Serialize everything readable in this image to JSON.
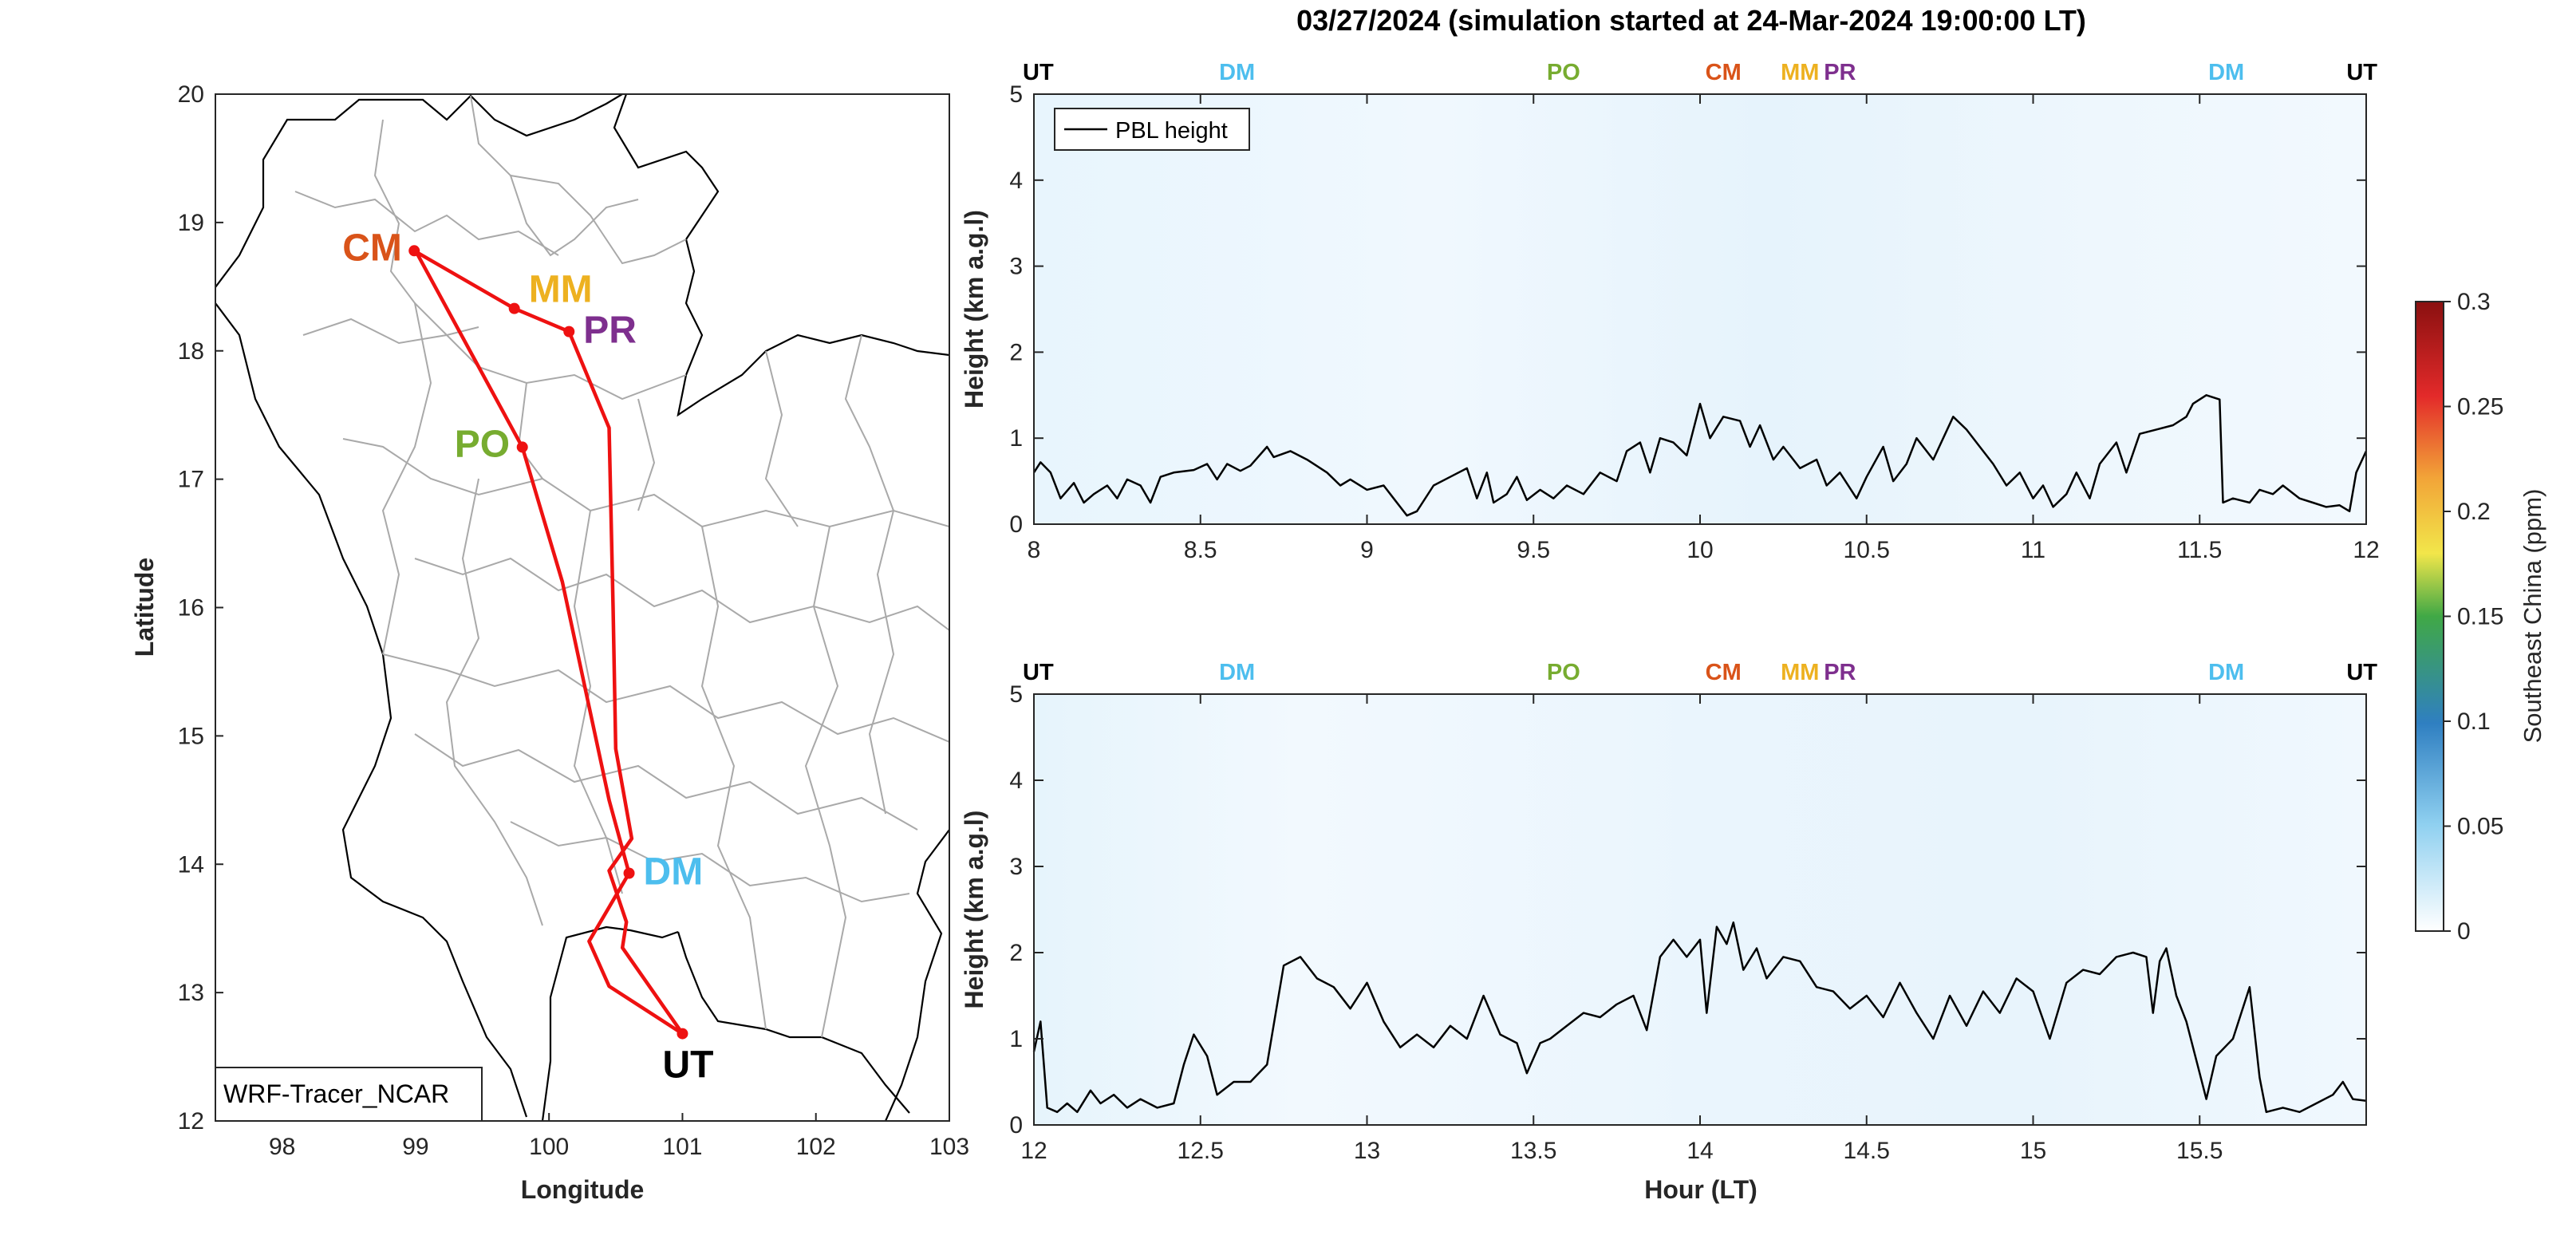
{
  "title": "03/27/2024 (simulation started at 24-Mar-2024 19:00:00 LT)",
  "colors": {
    "CM": "#D95319",
    "MM": "#EDB120",
    "PR": "#7E2F8E",
    "PO": "#77AC30",
    "DM": "#4DBEEE",
    "UT": "#000000",
    "route": "#EE1111",
    "pbl": "#000000"
  },
  "map": {
    "xlabel": "Longitude",
    "ylabel": "Latitude",
    "xlim": [
      97.5,
      103
    ],
    "ylim": [
      12,
      20
    ],
    "xticks": [
      "98",
      "99",
      "100",
      "101",
      "102",
      "103"
    ],
    "yticks": [
      "12",
      "13",
      "14",
      "15",
      "16",
      "17",
      "18",
      "19",
      "20"
    ],
    "label_box": "WRF-Tracer_NCAR",
    "route": [
      [
        98.99,
        18.78
      ],
      [
        99.74,
        18.33
      ],
      [
        100.15,
        18.15
      ],
      [
        100.45,
        17.4
      ],
      [
        100.48,
        16.0
      ],
      [
        100.5,
        14.9
      ],
      [
        100.62,
        14.2
      ],
      [
        100.45,
        13.95
      ],
      [
        100.58,
        13.55
      ],
      [
        100.55,
        13.35
      ],
      [
        101.0,
        12.68
      ],
      [
        100.45,
        13.05
      ],
      [
        100.3,
        13.4
      ],
      [
        100.6,
        13.93
      ],
      [
        100.45,
        14.5
      ],
      [
        100.1,
        16.2
      ],
      [
        99.8,
        17.25
      ],
      [
        99.0,
        18.78
      ]
    ],
    "places": [
      {
        "code": "CM",
        "lon": 98.99,
        "lat": 18.78
      },
      {
        "code": "MM",
        "lon": 99.74,
        "lat": 18.33
      },
      {
        "code": "PR",
        "lon": 100.15,
        "lat": 18.15
      },
      {
        "code": "PO",
        "lon": 99.8,
        "lat": 17.25
      },
      {
        "code": "DM",
        "lon": 100.6,
        "lat": 13.93
      },
      {
        "code": "UT",
        "lon": 101.0,
        "lat": 12.68
      }
    ]
  },
  "colorbar": {
    "label": "Southeast China (ppm)",
    "ticks": [
      "0",
      "0.05",
      "0.1",
      "0.15",
      "0.2",
      "0.25",
      "0.3"
    ],
    "range": [
      0,
      0.3
    ]
  },
  "chart_data": [
    {
      "type": "line",
      "ylabel": "Height (km a.g.l)",
      "xlim": [
        8,
        12
      ],
      "ylim": [
        0,
        5
      ],
      "xticks": [
        "8",
        "8.5",
        "9",
        "9.5",
        "10",
        "10.5",
        "11",
        "11.5",
        "12"
      ],
      "yticks": [
        "0",
        "1",
        "2",
        "3",
        "4",
        "5"
      ],
      "legend": "PBL height",
      "legend_position": "top-left",
      "top_markers": [
        {
          "label": "UT",
          "x": 8.0
        },
        {
          "label": "DM",
          "x": 8.61
        },
        {
          "label": "PO",
          "x": 9.59
        },
        {
          "label": "CM",
          "x": 10.07
        },
        {
          "label": "MM",
          "x": 10.3
        },
        {
          "label": "PR",
          "x": 10.42
        },
        {
          "label": "DM",
          "x": 11.58
        },
        {
          "label": "UT",
          "x": 11.97
        }
      ],
      "series": [
        {
          "name": "PBL height",
          "points": [
            [
              8.0,
              0.6
            ],
            [
              8.02,
              0.72
            ],
            [
              8.05,
              0.6
            ],
            [
              8.08,
              0.3
            ],
            [
              8.12,
              0.48
            ],
            [
              8.15,
              0.25
            ],
            [
              8.18,
              0.35
            ],
            [
              8.22,
              0.45
            ],
            [
              8.25,
              0.3
            ],
            [
              8.28,
              0.52
            ],
            [
              8.32,
              0.45
            ],
            [
              8.35,
              0.25
            ],
            [
              8.38,
              0.55
            ],
            [
              8.42,
              0.6
            ],
            [
              8.48,
              0.63
            ],
            [
              8.52,
              0.7
            ],
            [
              8.55,
              0.52
            ],
            [
              8.58,
              0.7
            ],
            [
              8.62,
              0.62
            ],
            [
              8.65,
              0.68
            ],
            [
              8.7,
              0.9
            ],
            [
              8.72,
              0.78
            ],
            [
              8.77,
              0.85
            ],
            [
              8.82,
              0.75
            ],
            [
              8.88,
              0.6
            ],
            [
              8.92,
              0.45
            ],
            [
              8.95,
              0.52
            ],
            [
              9.0,
              0.4
            ],
            [
              9.05,
              0.45
            ],
            [
              9.08,
              0.3
            ],
            [
              9.12,
              0.1
            ],
            [
              9.15,
              0.15
            ],
            [
              9.2,
              0.45
            ],
            [
              9.25,
              0.55
            ],
            [
              9.3,
              0.65
            ],
            [
              9.33,
              0.3
            ],
            [
              9.36,
              0.6
            ],
            [
              9.38,
              0.25
            ],
            [
              9.42,
              0.35
            ],
            [
              9.45,
              0.55
            ],
            [
              9.48,
              0.28
            ],
            [
              9.52,
              0.4
            ],
            [
              9.56,
              0.3
            ],
            [
              9.6,
              0.45
            ],
            [
              9.65,
              0.35
            ],
            [
              9.7,
              0.6
            ],
            [
              9.75,
              0.5
            ],
            [
              9.78,
              0.85
            ],
            [
              9.82,
              0.95
            ],
            [
              9.85,
              0.6
            ],
            [
              9.88,
              1.0
            ],
            [
              9.92,
              0.95
            ],
            [
              9.96,
              0.8
            ],
            [
              10.0,
              1.4
            ],
            [
              10.03,
              1.0
            ],
            [
              10.07,
              1.25
            ],
            [
              10.12,
              1.2
            ],
            [
              10.15,
              0.9
            ],
            [
              10.18,
              1.15
            ],
            [
              10.22,
              0.75
            ],
            [
              10.25,
              0.9
            ],
            [
              10.3,
              0.65
            ],
            [
              10.35,
              0.75
            ],
            [
              10.38,
              0.45
            ],
            [
              10.42,
              0.6
            ],
            [
              10.47,
              0.3
            ],
            [
              10.5,
              0.55
            ],
            [
              10.55,
              0.9
            ],
            [
              10.58,
              0.5
            ],
            [
              10.62,
              0.7
            ],
            [
              10.65,
              1.0
            ],
            [
              10.7,
              0.75
            ],
            [
              10.73,
              1.0
            ],
            [
              10.76,
              1.25
            ],
            [
              10.8,
              1.1
            ],
            [
              10.84,
              0.9
            ],
            [
              10.88,
              0.7
            ],
            [
              10.92,
              0.45
            ],
            [
              10.96,
              0.6
            ],
            [
              11.0,
              0.3
            ],
            [
              11.03,
              0.45
            ],
            [
              11.06,
              0.2
            ],
            [
              11.1,
              0.35
            ],
            [
              11.13,
              0.6
            ],
            [
              11.17,
              0.3
            ],
            [
              11.2,
              0.7
            ],
            [
              11.25,
              0.95
            ],
            [
              11.28,
              0.6
            ],
            [
              11.32,
              1.05
            ],
            [
              11.37,
              1.1
            ],
            [
              11.42,
              1.15
            ],
            [
              11.46,
              1.25
            ],
            [
              11.48,
              1.4
            ],
            [
              11.52,
              1.5
            ],
            [
              11.56,
              1.45
            ],
            [
              11.57,
              0.25
            ],
            [
              11.6,
              0.3
            ],
            [
              11.65,
              0.25
            ],
            [
              11.68,
              0.4
            ],
            [
              11.72,
              0.35
            ],
            [
              11.75,
              0.45
            ],
            [
              11.8,
              0.3
            ],
            [
              11.84,
              0.25
            ],
            [
              11.88,
              0.2
            ],
            [
              11.92,
              0.22
            ],
            [
              11.95,
              0.15
            ],
            [
              11.97,
              0.6
            ],
            [
              12.0,
              0.85
            ]
          ]
        }
      ]
    },
    {
      "type": "line",
      "xlabel": "Hour (LT)",
      "ylabel": "Height (km a.g.l)",
      "xlim": [
        12,
        16
      ],
      "ylim": [
        0,
        5
      ],
      "xticks": [
        "12",
        "12.5",
        "13",
        "13.5",
        "14",
        "14.5",
        "15",
        "15.5"
      ],
      "yticks": [
        "0",
        "1",
        "2",
        "3",
        "4",
        "5"
      ],
      "top_markers": [
        {
          "label": "UT",
          "x": 12.0
        },
        {
          "label": "DM",
          "x": 12.61
        },
        {
          "label": "PO",
          "x": 13.59
        },
        {
          "label": "CM",
          "x": 14.07
        },
        {
          "label": "MM",
          "x": 14.3
        },
        {
          "label": "PR",
          "x": 14.42
        },
        {
          "label": "DM",
          "x": 15.58
        },
        {
          "label": "UT",
          "x": 15.97
        }
      ],
      "series": [
        {
          "name": "PBL height",
          "points": [
            [
              12.0,
              0.85
            ],
            [
              12.02,
              1.2
            ],
            [
              12.04,
              0.2
            ],
            [
              12.07,
              0.15
            ],
            [
              12.1,
              0.25
            ],
            [
              12.13,
              0.15
            ],
            [
              12.17,
              0.4
            ],
            [
              12.2,
              0.25
            ],
            [
              12.24,
              0.35
            ],
            [
              12.28,
              0.2
            ],
            [
              12.32,
              0.3
            ],
            [
              12.37,
              0.2
            ],
            [
              12.42,
              0.25
            ],
            [
              12.45,
              0.7
            ],
            [
              12.48,
              1.05
            ],
            [
              12.52,
              0.8
            ],
            [
              12.55,
              0.35
            ],
            [
              12.6,
              0.5
            ],
            [
              12.65,
              0.5
            ],
            [
              12.7,
              0.7
            ],
            [
              12.75,
              1.85
            ],
            [
              12.8,
              1.95
            ],
            [
              12.85,
              1.7
            ],
            [
              12.9,
              1.6
            ],
            [
              12.95,
              1.35
            ],
            [
              13.0,
              1.65
            ],
            [
              13.05,
              1.2
            ],
            [
              13.1,
              0.9
            ],
            [
              13.15,
              1.05
            ],
            [
              13.2,
              0.9
            ],
            [
              13.25,
              1.15
            ],
            [
              13.3,
              1.0
            ],
            [
              13.35,
              1.5
            ],
            [
              13.4,
              1.05
            ],
            [
              13.45,
              0.95
            ],
            [
              13.48,
              0.6
            ],
            [
              13.52,
              0.95
            ],
            [
              13.55,
              1.0
            ],
            [
              13.6,
              1.15
            ],
            [
              13.65,
              1.3
            ],
            [
              13.7,
              1.25
            ],
            [
              13.75,
              1.4
            ],
            [
              13.8,
              1.5
            ],
            [
              13.84,
              1.1
            ],
            [
              13.88,
              1.95
            ],
            [
              13.92,
              2.15
            ],
            [
              13.96,
              1.95
            ],
            [
              14.0,
              2.15
            ],
            [
              14.02,
              1.3
            ],
            [
              14.05,
              2.3
            ],
            [
              14.08,
              2.1
            ],
            [
              14.1,
              2.35
            ],
            [
              14.13,
              1.8
            ],
            [
              14.17,
              2.05
            ],
            [
              14.2,
              1.7
            ],
            [
              14.25,
              1.95
            ],
            [
              14.3,
              1.9
            ],
            [
              14.35,
              1.6
            ],
            [
              14.4,
              1.55
            ],
            [
              14.45,
              1.35
            ],
            [
              14.5,
              1.5
            ],
            [
              14.55,
              1.25
            ],
            [
              14.6,
              1.65
            ],
            [
              14.65,
              1.3
            ],
            [
              14.7,
              1.0
            ],
            [
              14.75,
              1.5
            ],
            [
              14.8,
              1.15
            ],
            [
              14.85,
              1.55
            ],
            [
              14.9,
              1.3
            ],
            [
              14.95,
              1.7
            ],
            [
              15.0,
              1.55
            ],
            [
              15.05,
              1.0
            ],
            [
              15.1,
              1.65
            ],
            [
              15.15,
              1.8
            ],
            [
              15.2,
              1.75
            ],
            [
              15.25,
              1.95
            ],
            [
              15.3,
              2.0
            ],
            [
              15.34,
              1.95
            ],
            [
              15.36,
              1.3
            ],
            [
              15.38,
              1.9
            ],
            [
              15.4,
              2.05
            ],
            [
              15.43,
              1.5
            ],
            [
              15.46,
              1.2
            ],
            [
              15.5,
              0.6
            ],
            [
              15.52,
              0.3
            ],
            [
              15.55,
              0.8
            ],
            [
              15.6,
              1.0
            ],
            [
              15.65,
              1.6
            ],
            [
              15.68,
              0.55
            ],
            [
              15.7,
              0.15
            ],
            [
              15.75,
              0.2
            ],
            [
              15.8,
              0.15
            ],
            [
              15.85,
              0.25
            ],
            [
              15.9,
              0.35
            ],
            [
              15.93,
              0.5
            ],
            [
              15.96,
              0.3
            ],
            [
              16.0,
              0.28
            ]
          ]
        }
      ]
    }
  ]
}
